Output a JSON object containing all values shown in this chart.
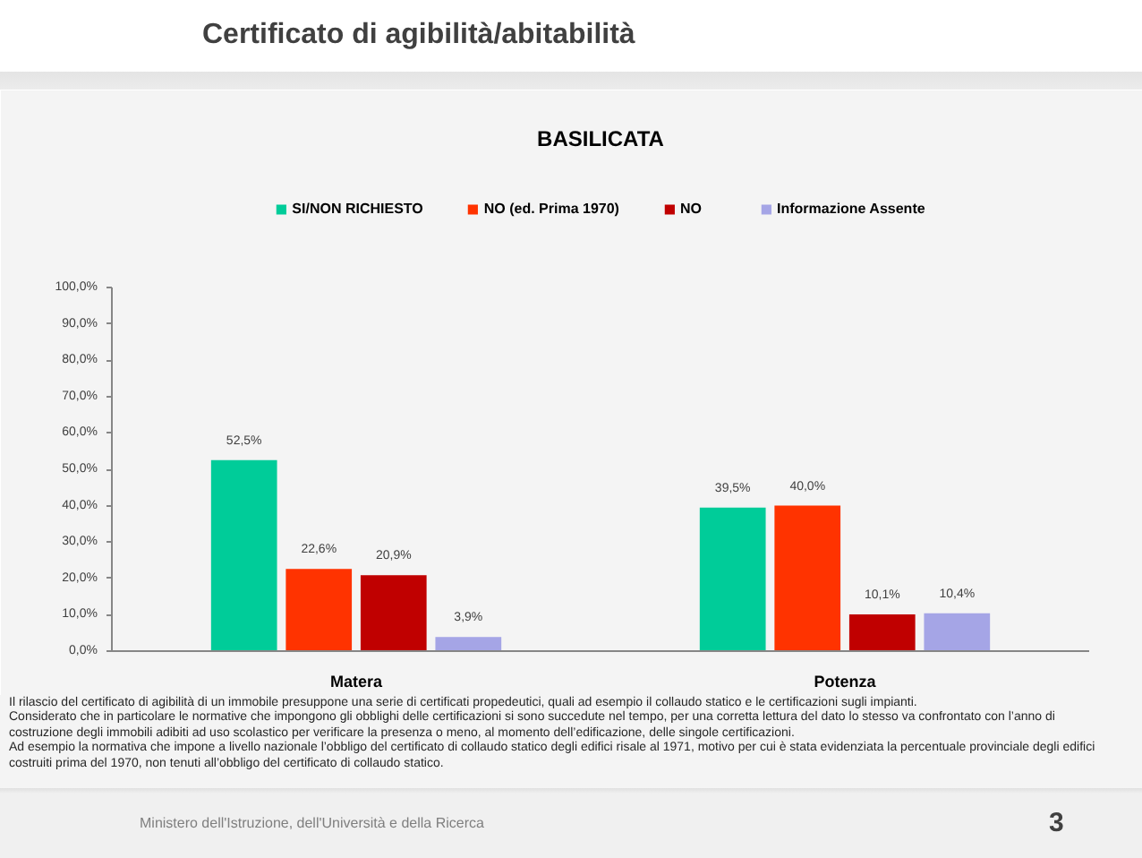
{
  "chart_data": {
    "type": "bar",
    "title": "Certificato di agibilità/abitabilità",
    "subtitle": "BASILICATA",
    "categories": [
      "Matera",
      "Potenza"
    ],
    "series": [
      {
        "name": "SI/NON RICHIESTO",
        "color": "#00cc99",
        "values": [
          52.5,
          39.5
        ],
        "value_labels": [
          "52,5%",
          "39,5%"
        ]
      },
      {
        "name": "NO (ed. Prima 1970)",
        "color": "#ff3300",
        "values": [
          22.6,
          40.0
        ],
        "value_labels": [
          "22,6%",
          "40,0%"
        ]
      },
      {
        "name": "NO",
        "color": "#c00000",
        "values": [
          20.9,
          10.1
        ],
        "value_labels": [
          "20,9%",
          "10,1%"
        ]
      },
      {
        "name": "Informazione Assente",
        "color": "#a5a5e6",
        "values": [
          3.9,
          10.4
        ],
        "value_labels": [
          "3,9%",
          "10,4%"
        ]
      }
    ],
    "ylim": [
      0,
      100
    ],
    "yticks": [
      {
        "value": 0,
        "label": "0,0%"
      },
      {
        "value": 10,
        "label": "10,0%"
      },
      {
        "value": 20,
        "label": "20,0%"
      },
      {
        "value": 30,
        "label": "30,0%"
      },
      {
        "value": 40,
        "label": "40,0%"
      },
      {
        "value": 50,
        "label": "50,0%"
      },
      {
        "value": 60,
        "label": "60,0%"
      },
      {
        "value": 70,
        "label": "70,0%"
      },
      {
        "value": 80,
        "label": "80,0%"
      },
      {
        "value": 90,
        "label": "90,0%"
      },
      {
        "value": 100,
        "label": "100,0%"
      }
    ],
    "legend": "top",
    "annotations": [
      "Il rilascio del certificato di agibilità di un immobile presuppone una serie di certificati propedeutici, quali ad esempio il collaudo statico e le certificazioni sugli impianti.",
      "Considerato che in particolare le normative che impongono gli obblighi delle certificazioni si sono succedute nel tempo, per una corretta lettura del dato lo stesso va confrontato con l’anno di costruzione degli immobili adibiti ad uso scolastico per verificare la presenza o meno, al momento dell’edificazione, delle singole certificazioni.",
      "Ad esempio la normativa che impone a livello nazionale l’obbligo del certificato di collaudo statico degli edifici risale al 1971, motivo per cui è stata evidenziata la percentuale provinciale degli edifici costruiti prima del 1970, non tenuti all’obbligo del certificato di collaudo statico.",
      "Ministero dell'Istruzione, dell'Università e della Ricerca",
      "3"
    ]
  }
}
